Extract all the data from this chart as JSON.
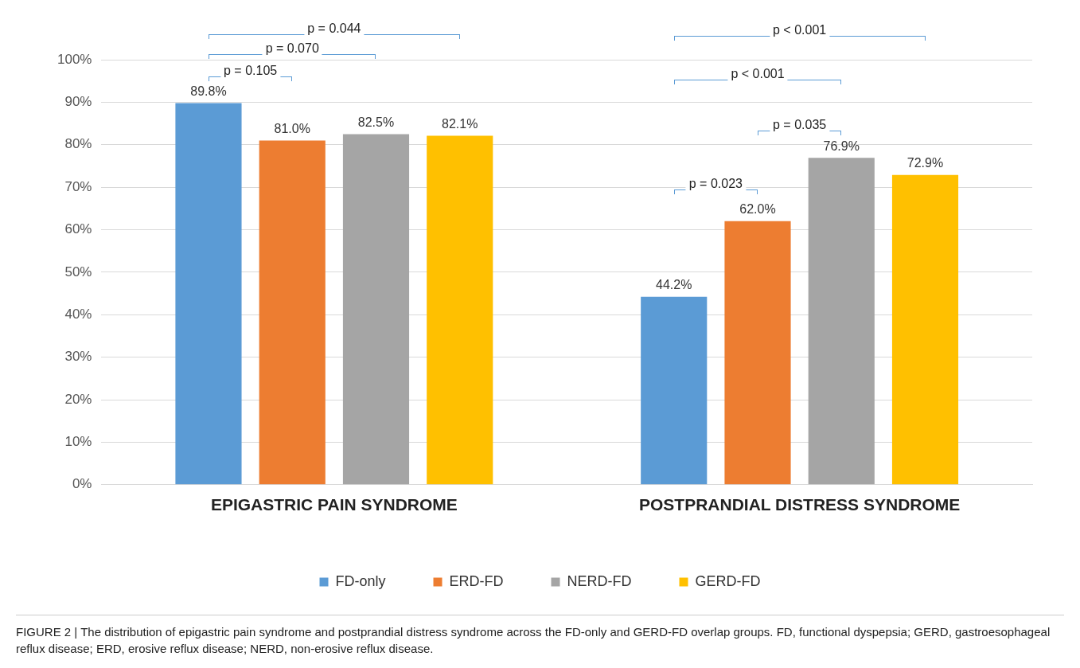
{
  "chart_data": {
    "type": "bar",
    "categories": [
      "EPIGASTRIC PAIN SYNDROME",
      "POSTPRANDIAL DISTRESS SYNDROME"
    ],
    "series": [
      {
        "name": "FD-only",
        "color": "#5b9bd5",
        "values": [
          89.8,
          44.2
        ],
        "value_labels": [
          "89.8%",
          "44.2%"
        ]
      },
      {
        "name": "ERD-FD",
        "color": "#ed7d31",
        "values": [
          81.0,
          62.0
        ],
        "value_labels": [
          "81.0%",
          "62.0%"
        ]
      },
      {
        "name": "NERD-FD",
        "color": "#a5a5a5",
        "values": [
          82.5,
          76.9
        ],
        "value_labels": [
          "82.5%",
          "76.9%"
        ]
      },
      {
        "name": "GERD-FD",
        "color": "#ffc000",
        "values": [
          82.1,
          72.9
        ],
        "value_labels": [
          "82.1%",
          "72.9%"
        ]
      }
    ],
    "ylim": [
      0,
      100
    ],
    "yticks": [
      {
        "value": 0,
        "label": "0%"
      },
      {
        "value": 10,
        "label": "10%"
      },
      {
        "value": 20,
        "label": "20%"
      },
      {
        "value": 30,
        "label": "30%"
      },
      {
        "value": 40,
        "label": "40%"
      },
      {
        "value": 50,
        "label": "50%"
      },
      {
        "value": 60,
        "label": "60%"
      },
      {
        "value": 70,
        "label": "70%"
      },
      {
        "value": 80,
        "label": "80%"
      },
      {
        "value": 90,
        "label": "90%"
      },
      {
        "value": 100,
        "label": "100%"
      }
    ],
    "grid": "y",
    "legend": "bottom",
    "annotations": [
      "p = 0.105",
      "p = 0.070",
      "p = 0.044",
      "p = 0.023",
      "p = 0.035",
      "p < 0.001",
      "p < 0.001",
      "FIGURE 2 | The distribution of epigastric pain syndrome and postprandial distress syndrome across the FD-only and GERD-FD overlap groups. FD, functional dyspepsia; GERD, gastroesophageal reflux disease; ERD, erosive reflux disease; NERD, non-erosive reflux disease."
    ]
  }
}
